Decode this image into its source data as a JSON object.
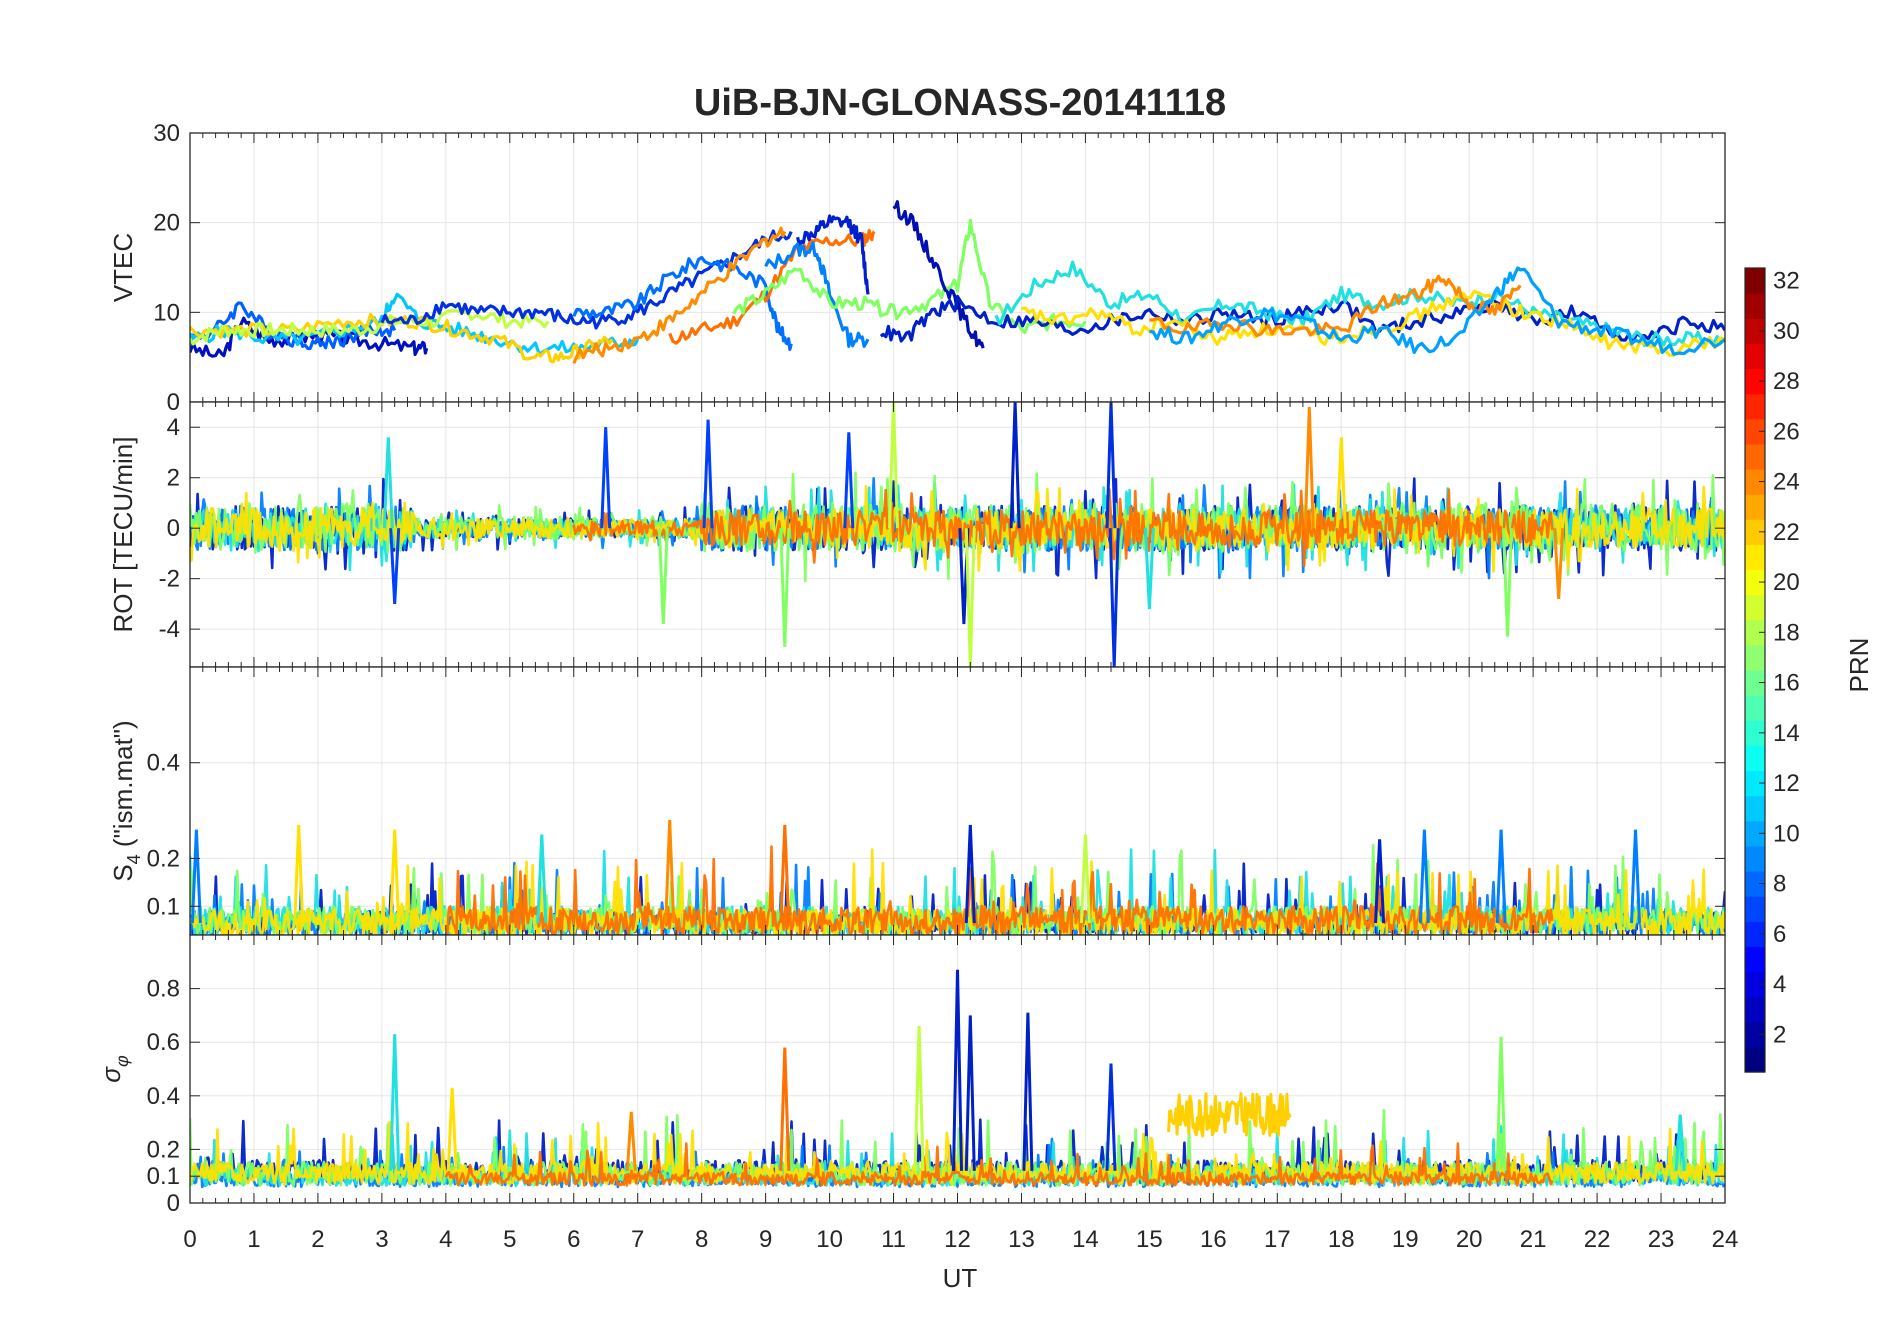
{
  "title": "UiB-BJN-GLONASS-20141118",
  "xlabel": "UT",
  "x_ticks": [
    "0",
    "1",
    "2",
    "3",
    "4",
    "5",
    "6",
    "7",
    "8",
    "9",
    "10",
    "11",
    "12",
    "13",
    "14",
    "15",
    "16",
    "17",
    "18",
    "19",
    "20",
    "21",
    "22",
    "23",
    "24"
  ],
  "colorbar": {
    "label": "PRN",
    "range": [
      1,
      32
    ],
    "ticks": [
      "2",
      "4",
      "6",
      "8",
      "10",
      "12",
      "14",
      "16",
      "18",
      "20",
      "22",
      "24",
      "26",
      "28",
      "30",
      "32"
    ],
    "colormap": "jet"
  },
  "chart_data": [
    {
      "type": "line",
      "ylabel": "VTEC",
      "xlim": [
        0,
        24
      ],
      "ylim": [
        0,
        30
      ],
      "y_ticks": [
        "0",
        "10",
        "20",
        "30"
      ],
      "grid": true,
      "series": [
        {
          "color": "#0010c0",
          "x": [
            0,
            0.5,
            0.8,
            1.2,
            1.6,
            2.0,
            2.5,
            3.0,
            3.5,
            3.7
          ],
          "y": [
            6,
            5,
            9,
            7,
            7,
            7.5,
            7,
            6.5,
            6,
            6
          ]
        },
        {
          "color": "#0060ff",
          "x": [
            0,
            0.4,
            0.8,
            1.2,
            1.6,
            2.0,
            2.4,
            2.8,
            3.2
          ],
          "y": [
            7,
            8,
            11,
            8,
            7,
            6.5,
            7,
            8,
            8
          ]
        },
        {
          "color": "#00c8ff",
          "x": [
            0,
            0.6,
            1.2,
            1.8,
            2.4,
            3.0,
            3.2,
            3.6,
            4.2,
            4.8,
            5.4,
            6.0,
            6.6,
            7.0
          ],
          "y": [
            7,
            8,
            7,
            7,
            8,
            9,
            12,
            9,
            8,
            7,
            6,
            6,
            6.5,
            7
          ]
        },
        {
          "color": "#ffd000",
          "x": [
            0,
            0.8,
            1.6,
            2.4,
            3.0,
            3.6,
            4.2,
            4.8,
            5.4,
            5.8,
            6.2,
            6.6
          ],
          "y": [
            8,
            8,
            8,
            9,
            9,
            9,
            8,
            7,
            5,
            5,
            6,
            7
          ]
        },
        {
          "color": "#c0ff40",
          "x": [
            0,
            0.5,
            1.0,
            1.5,
            2.0,
            2.6,
            3.2,
            3.8,
            4.4,
            5.0,
            5.6
          ],
          "y": [
            7,
            8,
            8,
            8,
            8,
            8,
            9,
            9,
            10,
            9,
            9
          ]
        },
        {
          "color": "#0030e0",
          "x": [
            3.0,
            3.5,
            4.0,
            4.5,
            5.0,
            5.5,
            6.0,
            6.5,
            7.0,
            7.5,
            8.0,
            8.5,
            9.0,
            9.4
          ],
          "y": [
            9,
            9,
            11,
            10,
            10,
            10,
            9,
            9,
            10,
            12,
            14,
            16,
            18,
            19
          ]
        },
        {
          "color": "#0070ff",
          "x": [
            6.0,
            6.5,
            7.0,
            7.5,
            8.0,
            8.5,
            9.0,
            9.2,
            9.4
          ],
          "y": [
            10,
            10,
            11,
            14,
            16,
            15,
            13,
            8,
            6.5
          ]
        },
        {
          "color": "#ff8c00",
          "x": [
            6.0,
            6.5,
            7.0,
            7.5,
            8.0,
            8.5,
            9.0,
            9.3
          ],
          "y": [
            5,
            6,
            7,
            9,
            12,
            15,
            18,
            19
          ]
        },
        {
          "color": "#ff7000",
          "x": [
            7.5,
            8.0,
            8.5,
            9.0,
            9.5,
            10.0,
            10.5,
            10.7
          ],
          "y": [
            7,
            8,
            9,
            12,
            17,
            18,
            18,
            19
          ]
        },
        {
          "color": "#0020d0",
          "x": [
            9.5,
            9.8,
            10.0,
            10.3,
            10.5,
            10.6
          ],
          "y": [
            18,
            19,
            20,
            20,
            18,
            12
          ]
        },
        {
          "color": "#0080ff",
          "x": [
            9.0,
            9.5,
            9.8,
            10.0,
            10.3,
            10.6
          ],
          "y": [
            15,
            17,
            17,
            12,
            7,
            7
          ]
        },
        {
          "color": "#80ff60",
          "x": [
            8.5,
            9.0,
            9.5,
            10.0,
            10.5,
            11.0,
            11.5,
            12.0,
            12.2,
            12.5,
            13.0,
            13.5,
            14.0
          ],
          "y": [
            10,
            12,
            15,
            11,
            11,
            10,
            11,
            13,
            20,
            11,
            8,
            9,
            9
          ]
        },
        {
          "color": "#0010b0",
          "x": [
            11.0,
            11.3,
            11.6,
            11.9,
            12.2,
            12.4
          ],
          "y": [
            22,
            20,
            16,
            12,
            8,
            6
          ]
        },
        {
          "color": "#0020c8",
          "x": [
            10.8,
            11.2,
            11.6,
            12.0,
            12.6,
            13.2,
            13.8,
            14.4,
            15.0,
            15.6,
            16.2,
            16.8,
            17.4,
            18.0,
            18.6,
            19.2,
            19.8,
            20.4,
            21.0,
            21.6,
            22.2,
            22.8,
            23.4,
            24
          ],
          "y": [
            8,
            7,
            10,
            11,
            9,
            9,
            8,
            9,
            10,
            9,
            10,
            9,
            10,
            11,
            8,
            9,
            10,
            11,
            9,
            10,
            8,
            7,
            9,
            8
          ]
        },
        {
          "color": "#20e0e0",
          "x": [
            12.6,
            13.2,
            13.8,
            14.4,
            15.0,
            15.6,
            16.2,
            16.8,
            17.4,
            18.0,
            18.6,
            19.2,
            19.8,
            20.4,
            21.0,
            21.6,
            22.2,
            22.8,
            23.4,
            24
          ],
          "y": [
            9,
            13,
            15,
            11,
            12,
            9,
            11,
            10,
            9,
            12,
            11,
            12,
            11,
            12,
            10,
            9,
            8,
            7,
            7,
            7
          ]
        },
        {
          "color": "#ffe000",
          "x": [
            13.0,
            13.6,
            14.2,
            14.8,
            15.4,
            16.0,
            16.6,
            17.2,
            17.8,
            18.4,
            19.0,
            19.6,
            20.2,
            20.8,
            21.4,
            22.0,
            22.6,
            23.2,
            24
          ],
          "y": [
            10,
            9,
            10,
            8,
            9,
            7,
            8,
            8,
            7,
            8,
            9,
            11,
            12,
            10,
            9,
            7,
            6,
            6,
            7
          ]
        },
        {
          "color": "#ff8800",
          "x": [
            15.0,
            15.6,
            16.2,
            16.8,
            17.4,
            18.0,
            18.6,
            19.2,
            19.6,
            20.0,
            20.4,
            20.8
          ],
          "y": [
            9,
            8,
            9,
            8,
            8,
            8,
            11,
            12,
            14,
            11,
            10,
            13
          ]
        },
        {
          "color": "#00a0ff",
          "x": [
            15.0,
            15.6,
            16.2,
            16.8,
            17.4,
            18.0,
            18.6,
            19.2,
            19.8,
            20.4,
            20.8,
            21.4,
            22.0,
            22.6,
            23.2,
            24
          ],
          "y": [
            8,
            7,
            9,
            10,
            9,
            7,
            8,
            6,
            7,
            12,
            15,
            9,
            8,
            7,
            6,
            7
          ]
        }
      ]
    },
    {
      "type": "line",
      "ylabel": "ROT [TECU/min]",
      "xlim": [
        0,
        24
      ],
      "ylim": [
        -5.5,
        5
      ],
      "y_ticks": [
        "-4",
        "-2",
        "0",
        "2",
        "4"
      ],
      "grid": true,
      "traces": [
        {
          "color": "#0020c8",
          "x0": 0,
          "x1": 24,
          "amp": 0.9,
          "seed": 11
        },
        {
          "color": "#0080ff",
          "x0": 0,
          "x1": 24,
          "amp": 0.9,
          "seed": 23
        },
        {
          "color": "#20e0e0",
          "x0": 0,
          "x1": 24,
          "amp": 0.8,
          "seed": 37
        },
        {
          "color": "#80ff60",
          "x0": 0,
          "x1": 24,
          "amp": 1.0,
          "seed": 41
        },
        {
          "color": "#ffe000",
          "x0": 0,
          "x1": 24,
          "amp": 0.8,
          "seed": 53
        },
        {
          "color": "#ff7000",
          "x0": 6,
          "x1": 21.3,
          "amp": 0.7,
          "seed": 67
        }
      ],
      "spikes": [
        {
          "color": "#0020c8",
          "x": 12.9,
          "y": 5
        },
        {
          "color": "#0020c8",
          "x": 12.1,
          "y": -3.8
        },
        {
          "color": "#0030e0",
          "x": 14.4,
          "y": 5
        },
        {
          "color": "#0030e0",
          "x": 14.45,
          "y": -5.5
        },
        {
          "color": "#0040ff",
          "x": 6.5,
          "y": 4
        },
        {
          "color": "#0040ff",
          "x": 8.1,
          "y": 4.3
        },
        {
          "color": "#0040ff",
          "x": 3.2,
          "y": -3
        },
        {
          "color": "#0040ff",
          "x": 10.3,
          "y": 3.8
        },
        {
          "color": "#c0ff40",
          "x": 11.0,
          "y": 5
        },
        {
          "color": "#c0ff40",
          "x": 12.2,
          "y": -5.5
        },
        {
          "color": "#80ff60",
          "x": 9.3,
          "y": -4.7
        },
        {
          "color": "#80ff60",
          "x": 7.4,
          "y": -3.8
        },
        {
          "color": "#ff8c00",
          "x": 17.5,
          "y": 4.8
        },
        {
          "color": "#ff8c00",
          "x": 21.4,
          "y": -2.8
        },
        {
          "color": "#20e0e0",
          "x": 3.1,
          "y": 3.6
        },
        {
          "color": "#20e0e0",
          "x": 15.0,
          "y": -3.2
        },
        {
          "color": "#80ff60",
          "x": 20.6,
          "y": -4.3
        },
        {
          "color": "#ffe000",
          "x": 18.0,
          "y": 3.6
        }
      ]
    },
    {
      "type": "line",
      "ylabel": "S4 (\"ism.mat\")",
      "ylabel_main": "S",
      "ylabel_sub": "4",
      "ylabel_rest": "  (\"ism.mat\")",
      "xlim": [
        0,
        24
      ],
      "ylim": [
        0.04,
        0.6
      ],
      "y_ticks": [
        "0.1",
        "0.2",
        "0.4"
      ],
      "grid": true,
      "traces": [
        {
          "color": "#0020c8",
          "x0": 0,
          "x1": 24,
          "base": 0.065,
          "amp": 0.05,
          "seed": 5
        },
        {
          "color": "#0080ff",
          "x0": 0,
          "x1": 24,
          "base": 0.06,
          "amp": 0.05,
          "seed": 17
        },
        {
          "color": "#20e0e0",
          "x0": 0,
          "x1": 24,
          "base": 0.07,
          "amp": 0.06,
          "seed": 29
        },
        {
          "color": "#80ff60",
          "x0": 0,
          "x1": 24,
          "base": 0.07,
          "amp": 0.06,
          "seed": 43
        },
        {
          "color": "#ffe000",
          "x0": 0,
          "x1": 24,
          "base": 0.065,
          "amp": 0.06,
          "seed": 59
        },
        {
          "color": "#ff7000",
          "x0": 4,
          "x1": 21.3,
          "base": 0.07,
          "amp": 0.06,
          "seed": 71
        }
      ],
      "spikes": [
        {
          "color": "#0080ff",
          "x": 0.1,
          "y": 0.26
        },
        {
          "color": "#ffe000",
          "x": 1.7,
          "y": 0.27
        },
        {
          "color": "#ff8c00",
          "x": 7.5,
          "y": 0.28
        },
        {
          "color": "#ff7000",
          "x": 9.3,
          "y": 0.27
        },
        {
          "color": "#0020c8",
          "x": 12.2,
          "y": 0.27
        },
        {
          "color": "#ffe000",
          "x": 3.2,
          "y": 0.26
        },
        {
          "color": "#0080ff",
          "x": 20.5,
          "y": 0.26
        },
        {
          "color": "#0080ff",
          "x": 22.6,
          "y": 0.26
        },
        {
          "color": "#0080ff",
          "x": 19.3,
          "y": 0.26
        },
        {
          "color": "#20e0e0",
          "x": 5.5,
          "y": 0.25
        },
        {
          "color": "#0020c8",
          "x": 18.6,
          "y": 0.24
        },
        {
          "color": "#c0ff40",
          "x": 14.0,
          "y": 0.25
        }
      ]
    },
    {
      "type": "line",
      "ylabel": "σφ",
      "xlim": [
        0,
        24
      ],
      "ylim": [
        0,
        1
      ],
      "y_ticks": [
        "0",
        "0.1",
        "0.2",
        "0.4",
        "0.6",
        "0.8"
      ],
      "grid": true,
      "traces": [
        {
          "color": "#0020c8",
          "x0": 0,
          "x1": 24,
          "base": 0.12,
          "amp": 0.08,
          "seed": 7
        },
        {
          "color": "#0080ff",
          "x0": 0,
          "x1": 24,
          "base": 0.09,
          "amp": 0.06,
          "seed": 19
        },
        {
          "color": "#20e0e0",
          "x0": 0,
          "x1": 24,
          "base": 0.1,
          "amp": 0.07,
          "seed": 31
        },
        {
          "color": "#80ff60",
          "x0": 0,
          "x1": 24,
          "base": 0.11,
          "amp": 0.09,
          "seed": 47
        },
        {
          "color": "#ffe000",
          "x0": 0,
          "x1": 24,
          "base": 0.11,
          "amp": 0.08,
          "seed": 61
        },
        {
          "color": "#ff7000",
          "x0": 4,
          "x1": 21.3,
          "base": 0.09,
          "amp": 0.05,
          "seed": 73
        }
      ],
      "blocks": [
        {
          "color": "#ffd000",
          "x0": 15.3,
          "x1": 17.2,
          "base": 0.33,
          "amp": 0.1,
          "seed": 83
        }
      ],
      "spikes": [
        {
          "color": "#20e0e0",
          "x": 3.2,
          "y": 0.63
        },
        {
          "color": "#ff7000",
          "x": 9.3,
          "y": 0.58
        },
        {
          "color": "#0020c8",
          "x": 12.0,
          "y": 0.87
        },
        {
          "color": "#0020c8",
          "x": 12.2,
          "y": 0.7
        },
        {
          "color": "#0020c8",
          "x": 13.1,
          "y": 0.71
        },
        {
          "color": "#c0ff40",
          "x": 11.4,
          "y": 0.66
        },
        {
          "color": "#80ff60",
          "x": 20.5,
          "y": 0.62
        },
        {
          "color": "#0030e0",
          "x": 14.4,
          "y": 0.52
        },
        {
          "color": "#ffe000",
          "x": 4.1,
          "y": 0.43
        },
        {
          "color": "#ff8c00",
          "x": 6.9,
          "y": 0.34
        },
        {
          "color": "#20e0e0",
          "x": 23.3,
          "y": 0.33
        }
      ]
    }
  ]
}
